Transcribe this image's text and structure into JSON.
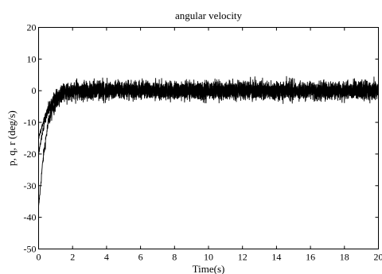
{
  "chart_data": {
    "type": "line",
    "title": "angular velocity",
    "xlabel": "Time(s)",
    "ylabel": "p, q, r (deg/s)",
    "xlim": [
      0,
      20
    ],
    "ylim": [
      -50,
      20
    ],
    "grid": false,
    "x_ticks": [
      "0",
      "2",
      "4",
      "6",
      "8",
      "10",
      "12",
      "14",
      "16",
      "18",
      "20"
    ],
    "y_ticks": [
      "-50",
      "-40",
      "-30",
      "-20",
      "-10",
      "0",
      "10",
      "20"
    ],
    "series": [
      {
        "color": "#000000",
        "transient": {
          "x": [
            0,
            0.1,
            0.2,
            0.3,
            0.4,
            0.5,
            0.6,
            0.8,
            1.0,
            1.3,
            1.6,
            2.0
          ],
          "y": [
            -37,
            -31,
            -25,
            -20,
            -16,
            -12.5,
            -9.5,
            -6,
            -3.5,
            -1.5,
            -0.5,
            0
          ]
        },
        "noise_amplitude": 2.8,
        "noise_peak": 6,
        "steady_mean": 0,
        "sample_step": 0.01
      },
      {
        "color": "#000000",
        "transient": {
          "x": [
            0,
            0.1,
            0.2,
            0.3,
            0.4,
            0.6,
            0.8,
            1.0,
            1.3,
            1.6,
            2.0
          ],
          "y": [
            -20,
            -17,
            -14,
            -11.5,
            -9,
            -6,
            -4,
            -2.5,
            -1,
            -0.3,
            0
          ]
        },
        "noise_amplitude": 2.5,
        "noise_peak": 5.5,
        "steady_mean": 0.3,
        "sample_step": 0.01
      },
      {
        "color": "#000000",
        "transient": {
          "x": [
            0,
            0.2,
            0.4,
            0.6,
            0.8,
            1.0,
            1.4,
            2.0
          ],
          "y": [
            -15,
            -11,
            -8,
            -5.5,
            -3.5,
            -2,
            -0.6,
            0
          ]
        },
        "noise_amplitude": 2.2,
        "noise_peak": 5,
        "steady_mean": -0.2,
        "sample_step": 0.01
      }
    ]
  }
}
